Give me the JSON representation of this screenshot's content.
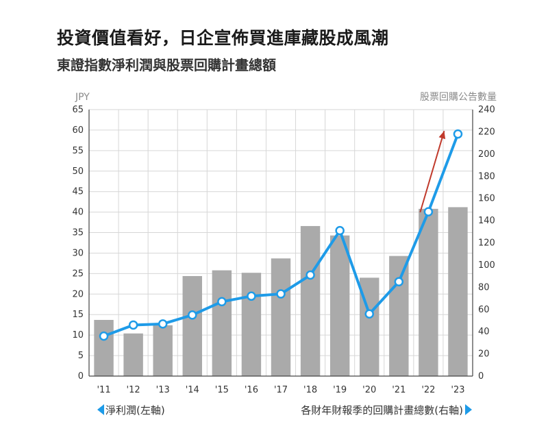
{
  "title": "投資價值看好，日企宣佈買進庫藏股成風潮",
  "subtitle": "東證指數淨利潤與股票回購計畫總額",
  "chart_data": {
    "type": "bar",
    "categories": [
      "'11",
      "'12",
      "'13",
      "'14",
      "'15",
      "'16",
      "'17",
      "'18",
      "'19",
      "'20",
      "'21",
      "'22",
      "'23"
    ],
    "series": [
      {
        "name": "淨利潤(左軸)",
        "type": "bar",
        "axis": "left",
        "color": "#aaaaaa",
        "values": [
          13.7,
          10.4,
          12.4,
          24.4,
          25.8,
          25.2,
          28.7,
          36.6,
          34.3,
          24.0,
          29.3,
          40.8,
          41.2
        ]
      },
      {
        "name": "各財年財報季的回購計畫總數(右軸)",
        "type": "line",
        "axis": "right",
        "color": "#1e9be8",
        "values": [
          36,
          46,
          47,
          55,
          67,
          72,
          74,
          91,
          131,
          56,
          85,
          148,
          218
        ]
      }
    ],
    "left_axis": {
      "label": "JPY",
      "ylim": [
        0,
        65
      ],
      "ticks": [
        0,
        5,
        10,
        15,
        20,
        25,
        30,
        35,
        40,
        45,
        50,
        55,
        60,
        65
      ]
    },
    "right_axis": {
      "label": "股票回購公告數量",
      "ylim": [
        0,
        240
      ],
      "ticks": [
        0,
        20,
        40,
        60,
        80,
        100,
        120,
        140,
        160,
        180,
        200,
        220,
        240
      ]
    },
    "annotation": {
      "type": "arrow",
      "color": "#c0392b",
      "from": {
        "x": "'22",
        "y": 150
      },
      "to": {
        "x": "'23",
        "y": 222
      }
    },
    "grid": true,
    "legend": {
      "left": {
        "label": "淨利潤(左軸)",
        "marker": "left-triangle"
      },
      "right": {
        "label": "各財年財報季的回購計畫總數(右軸)",
        "marker": "right-triangle"
      }
    }
  }
}
